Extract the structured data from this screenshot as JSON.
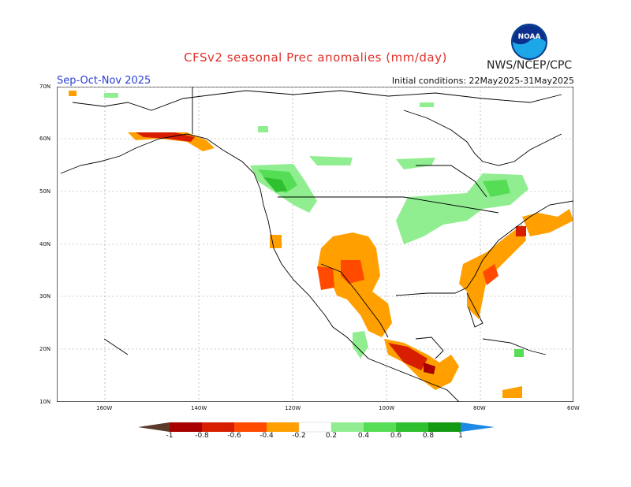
{
  "header": {
    "title": "CFSv2 seasonal Prec anomalies (mm/day)",
    "agency": "NWS/NCEP/CPC",
    "season": "Sep-Oct-Nov 2025",
    "initial_conditions": "Initial conditions: 22May2025-31May2025",
    "logo_text": "NOAA"
  },
  "map": {
    "lat_labels": [
      "70N",
      "60N",
      "50N",
      "40N",
      "30N",
      "20N",
      "10N"
    ],
    "lon_labels": [
      "160W",
      "140W",
      "120W",
      "100W",
      "80W",
      "60W"
    ]
  },
  "colorbar": {
    "labels": [
      "-1",
      "-0.8",
      "-0.6",
      "-0.4",
      "-0.2",
      "0.2",
      "0.4",
      "0.6",
      "0.8",
      "1"
    ],
    "colors": [
      "#5a3a2a",
      "#a80000",
      "#d81e00",
      "#ff4a00",
      "#ffa000",
      "#ffffff",
      "#90ee90",
      "#55dd55",
      "#2ec02e",
      "#139a13",
      "#1e88e5"
    ]
  }
}
